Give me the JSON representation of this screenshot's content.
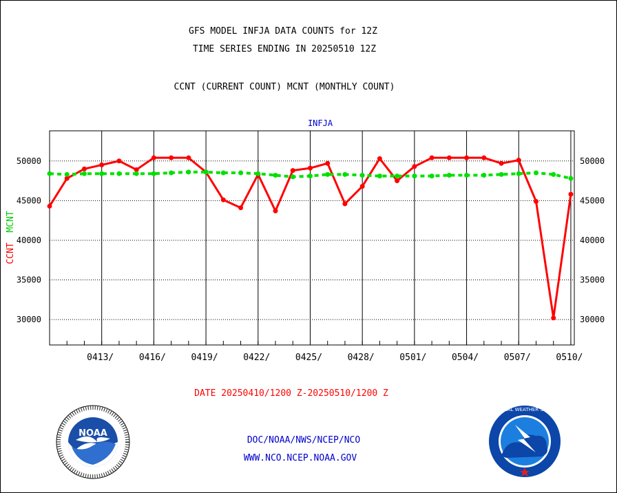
{
  "header": {
    "title_line1": "GFS MODEL INFJA DATA COUNTS for 12Z",
    "title_line2": "TIME SERIES ENDING IN 20250510 12Z",
    "subtitle": "CCNT (CURRENT COUNT) MCNT (MONTHLY COUNT)"
  },
  "chart_data": {
    "type": "line",
    "title": "INFJA",
    "ylabel_left_ccnt": "CCNT",
    "ylabel_left_mcnt": "MCNT",
    "xlabel": "DATE 20250410/1200 Z-20250510/1200 Z",
    "ylim": [
      26800,
      53800
    ],
    "xlim": [
      0,
      30.2
    ],
    "y_ticks": [
      30000,
      35000,
      40000,
      45000,
      50000
    ],
    "x_tick_labels": [
      "0413/",
      "0416/",
      "0419/",
      "0422/",
      "0425/",
      "0428/",
      "0501/",
      "0504/",
      "0507/",
      "0510/"
    ],
    "x_tick_positions": [
      3,
      6,
      9,
      12,
      15,
      18,
      21,
      24,
      27,
      30
    ],
    "grid": true,
    "series": [
      {
        "name": "CCNT",
        "color": "#ff0000",
        "x": [
          0,
          1,
          2,
          3,
          4,
          5,
          6,
          7,
          8,
          9,
          10,
          11,
          12,
          13,
          14,
          15,
          16,
          17,
          18,
          19,
          20,
          21,
          22,
          23,
          24,
          25,
          26,
          27,
          28,
          29,
          30
        ],
        "values": [
          44300,
          47800,
          49000,
          49500,
          50000,
          48900,
          50400,
          50400,
          50400,
          48600,
          45100,
          44100,
          48300,
          43700,
          48800,
          49100,
          49700,
          44600,
          46800,
          50300,
          47500,
          49300,
          50400,
          50400,
          50400,
          50400,
          49700,
          50100,
          44900,
          30200,
          45800
        ]
      },
      {
        "name": "MCNT",
        "color": "#00e000",
        "x": [
          0,
          1,
          2,
          3,
          4,
          5,
          6,
          7,
          8,
          9,
          10,
          11,
          12,
          13,
          14,
          15,
          16,
          17,
          18,
          19,
          20,
          21,
          22,
          23,
          24,
          25,
          26,
          27,
          28,
          29,
          30
        ],
        "values": [
          48400,
          48300,
          48400,
          48400,
          48400,
          48400,
          48400,
          48500,
          48600,
          48600,
          48500,
          48500,
          48400,
          48200,
          48000,
          48100,
          48300,
          48300,
          48200,
          48100,
          48100,
          48100,
          48100,
          48200,
          48200,
          48200,
          48300,
          48400,
          48500,
          48300,
          47800
        ]
      }
    ]
  },
  "footer": {
    "line1": "DOC/NOAA/NWS/NCEP/NCO",
    "line2": "WWW.NCO.NCEP.NOAA.GOV"
  },
  "logos": {
    "noaa_text": "NOAA",
    "nws_text": "NATIONAL WEATHER SERVICE"
  },
  "colors": {
    "ccnt": "#ff0000",
    "mcnt": "#00e000",
    "text_blue": "#0000cc",
    "logo_blue": "#0b46a8"
  }
}
